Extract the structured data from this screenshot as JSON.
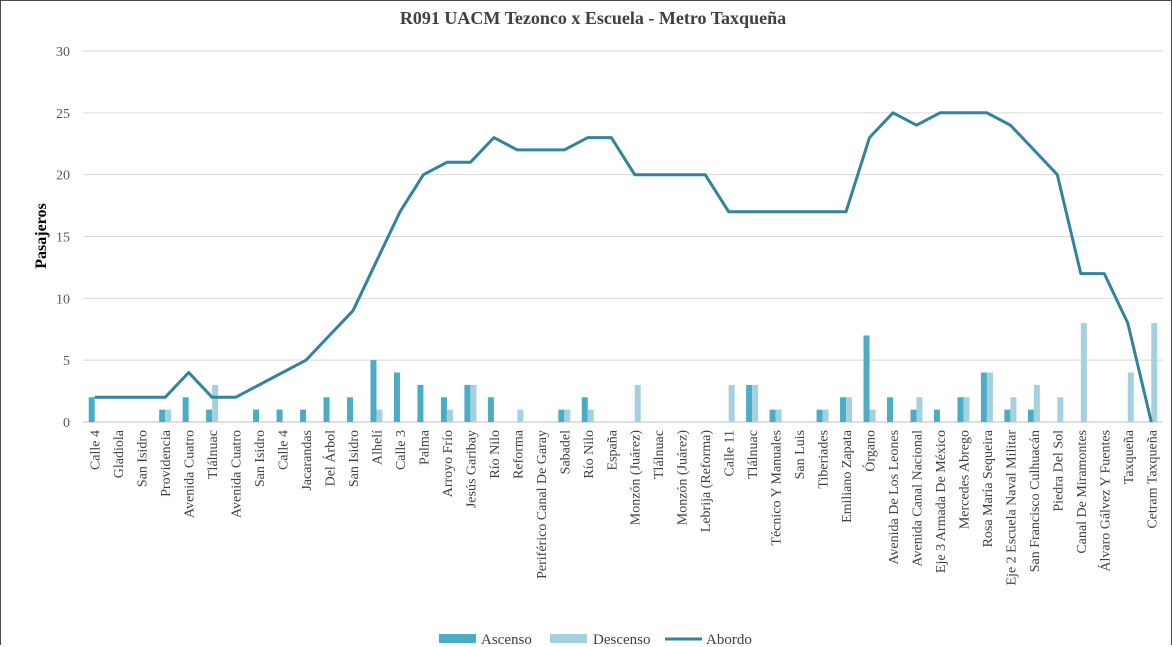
{
  "chart_data": {
    "type": "bar",
    "title": "R091 UACM Tezonco x Escuela - Metro Taxqueña",
    "xlabel": "",
    "ylabel": "Pasajeros",
    "ylim": [
      0,
      30
    ],
    "yticks": [
      "0",
      "5",
      "10",
      "15",
      "20",
      "25",
      "30"
    ],
    "grid": true,
    "legend_position": "bottom",
    "categories": [
      "Calle 4",
      "Gladiola",
      "San Isidro",
      "Providencia",
      "Avenida Cuatro",
      "Tlálnuac",
      "Avenida Cuatro",
      "San Isidro",
      "Calle 4",
      "Jacarandas",
      "Del Árbol",
      "San Isidro",
      "Alhelí",
      "Calle 3",
      "Palma",
      "Arroyo Frío",
      "Jesús Garibay",
      "Río Nilo",
      "Reforma",
      "Periférico Canal De Garay",
      "Sabadel",
      "Río Nilo",
      "España",
      "Monzón (Juárez)",
      "Tlálnuac",
      "Monzón (Juárez)",
      "Lebrija (Reforma)",
      "Calle 11",
      "Tlálnuac",
      "Técnico Y Manuales",
      "San Luis",
      "Tiberiades",
      "Emiliano Zapata",
      "Órgano",
      "Avenida De Los Leones",
      "Avenida Canal Nacional",
      "Eje 3 Armada De México",
      "Mercedes Abrego",
      "Rosa María Sequeira",
      "Eje 2 Escuela Naval Militar",
      "San Francisco Culhuacán",
      "Piedra Del Sol",
      "Canal De Miramontes",
      "Álvaro Gálvez Y Fuentes",
      "Taxqueña",
      "Cetram Taxqueña"
    ],
    "series": [
      {
        "name": "Ascenso",
        "type": "bar",
        "color": "#4bacc6",
        "values": [
          2,
          0,
          0,
          1,
          2,
          1,
          0,
          1,
          1,
          1,
          2,
          2,
          5,
          4,
          3,
          2,
          3,
          2,
          0,
          0,
          1,
          2,
          0,
          0,
          0,
          0,
          0,
          0,
          3,
          1,
          0,
          1,
          2,
          7,
          2,
          1,
          1,
          2,
          4,
          1,
          1,
          0,
          0,
          0,
          0,
          0
        ]
      },
      {
        "name": "Descenso",
        "type": "bar",
        "color": "#a5d0de",
        "values": [
          0,
          0,
          0,
          1,
          0,
          3,
          0,
          0,
          0,
          0,
          0,
          0,
          1,
          0,
          0,
          1,
          3,
          0,
          1,
          0,
          1,
          1,
          0,
          3,
          0,
          0,
          0,
          3,
          3,
          1,
          0,
          1,
          2,
          1,
          0,
          2,
          0,
          2,
          4,
          2,
          3,
          2,
          8,
          0,
          4,
          8
        ]
      },
      {
        "name": "Abordo",
        "type": "line",
        "color": "#31849b",
        "values": [
          2,
          2,
          2,
          2,
          4,
          2,
          2,
          3,
          4,
          5,
          7,
          9,
          13,
          17,
          20,
          21,
          21,
          23,
          22,
          22,
          22,
          23,
          23,
          20,
          20,
          20,
          20,
          17,
          17,
          17,
          17,
          17,
          17,
          23,
          25,
          24,
          25,
          25,
          25,
          24,
          22,
          20,
          12,
          12,
          8,
          0
        ]
      }
    ]
  }
}
